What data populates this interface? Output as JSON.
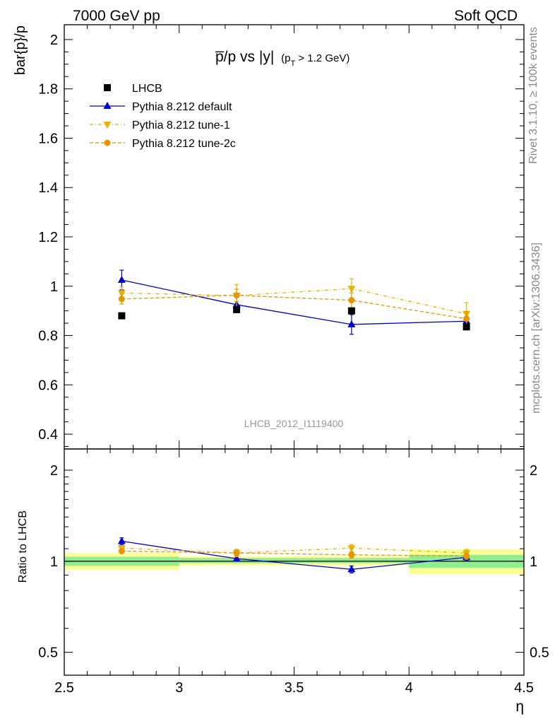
{
  "header": {
    "left": "7000 GeV pp",
    "right": "Soft QCD"
  },
  "side_text": {
    "rivet": "Rivet 3.1.10, ≥ 100k events",
    "mcplots": "mcplots.cern.ch [arXiv:1306.3436]"
  },
  "title": {
    "main": "p̅/p vs |y|",
    "cut": "(p",
    "cut_sub": "T",
    "cut_rest": " > 1.2 GeV)"
  },
  "watermark": "LHCB_2012_I1119400",
  "colors": {
    "data": "#000000",
    "default": "#0000cc",
    "tune1": "#e6b400",
    "tune2c": "#e69600",
    "band_inner": "#90ee90",
    "band_outer": "#ffff99"
  },
  "chart_data": [
    {
      "type": "scatter",
      "ylabel": "bar{p}/p",
      "xlim": [
        2.5,
        4.5
      ],
      "ylim": [
        0.34,
        2.06
      ],
      "yticks": [
        "0.4",
        "0.6",
        "0.8",
        "1",
        "1.2",
        "1.4",
        "1.6",
        "1.8",
        "2"
      ],
      "legend_position": "top-left",
      "series": [
        {
          "name": "LHCB",
          "x": [
            2.75,
            3.25,
            3.75,
            4.25
          ],
          "y": [
            0.88,
            0.905,
            0.9,
            0.835
          ],
          "yerr": [
            0.005,
            0.005,
            0.005,
            0.005
          ]
        },
        {
          "name": "Pythia 8.212 default",
          "x": [
            2.75,
            3.25,
            3.75,
            4.25
          ],
          "y": [
            1.025,
            0.925,
            0.845,
            0.858
          ],
          "yerr": [
            0.04,
            0.03,
            0.04,
            0.03
          ]
        },
        {
          "name": "Pythia 8.212 tune-1",
          "x": [
            2.75,
            3.25,
            3.75,
            4.25
          ],
          "y": [
            0.972,
            0.962,
            0.99,
            0.888
          ],
          "yerr": [
            0.025,
            0.045,
            0.04,
            0.045
          ]
        },
        {
          "name": "Pythia 8.212 tune-2c",
          "x": [
            2.75,
            3.25,
            3.75,
            4.25
          ],
          "y": [
            0.948,
            0.963,
            0.943,
            0.868
          ],
          "yerr": [
            0.02,
            0.025,
            0.03,
            0.03
          ]
        }
      ]
    },
    {
      "type": "scatter",
      "xlabel": "η",
      "ylabel": "Ratio to LHCB",
      "xlim": [
        2.5,
        4.5
      ],
      "ylog": true,
      "ylim": [
        0.42,
        2.35
      ],
      "yticks": [
        "0.5",
        "1",
        "2"
      ],
      "xticks": [
        "2.5",
        "3",
        "3.5",
        "4",
        "4.5"
      ],
      "bands": [
        {
          "x": [
            2.5,
            3.0
          ],
          "inner": [
            0.965,
            1.035
          ],
          "outer": [
            0.935,
            1.065
          ]
        },
        {
          "x": [
            3.0,
            4.0
          ],
          "inner": [
            0.985,
            1.025
          ],
          "outer": [
            0.965,
            1.04
          ]
        },
        {
          "x": [
            4.0,
            4.5
          ],
          "inner": [
            0.95,
            1.05
          ],
          "outer": [
            0.905,
            1.095
          ]
        }
      ],
      "series": [
        {
          "name": "Pythia 8.212 default",
          "x": [
            2.75,
            3.25,
            3.75,
            4.25
          ],
          "y": [
            1.165,
            1.02,
            0.94,
            1.03
          ],
          "yerr": [
            0.03,
            0.02,
            0.025,
            0.025
          ]
        },
        {
          "name": "Pythia 8.212 tune-1",
          "x": [
            2.75,
            3.25,
            3.75,
            4.25
          ],
          "y": [
            1.105,
            1.065,
            1.105,
            1.065
          ],
          "yerr": [
            0.02,
            0.03,
            0.03,
            0.03
          ]
        },
        {
          "name": "Pythia 8.212 tune-2c",
          "x": [
            2.75,
            3.25,
            3.75,
            4.25
          ],
          "y": [
            1.08,
            1.065,
            1.05,
            1.04
          ],
          "yerr": [
            0.02,
            0.025,
            0.025,
            0.025
          ]
        }
      ]
    }
  ]
}
